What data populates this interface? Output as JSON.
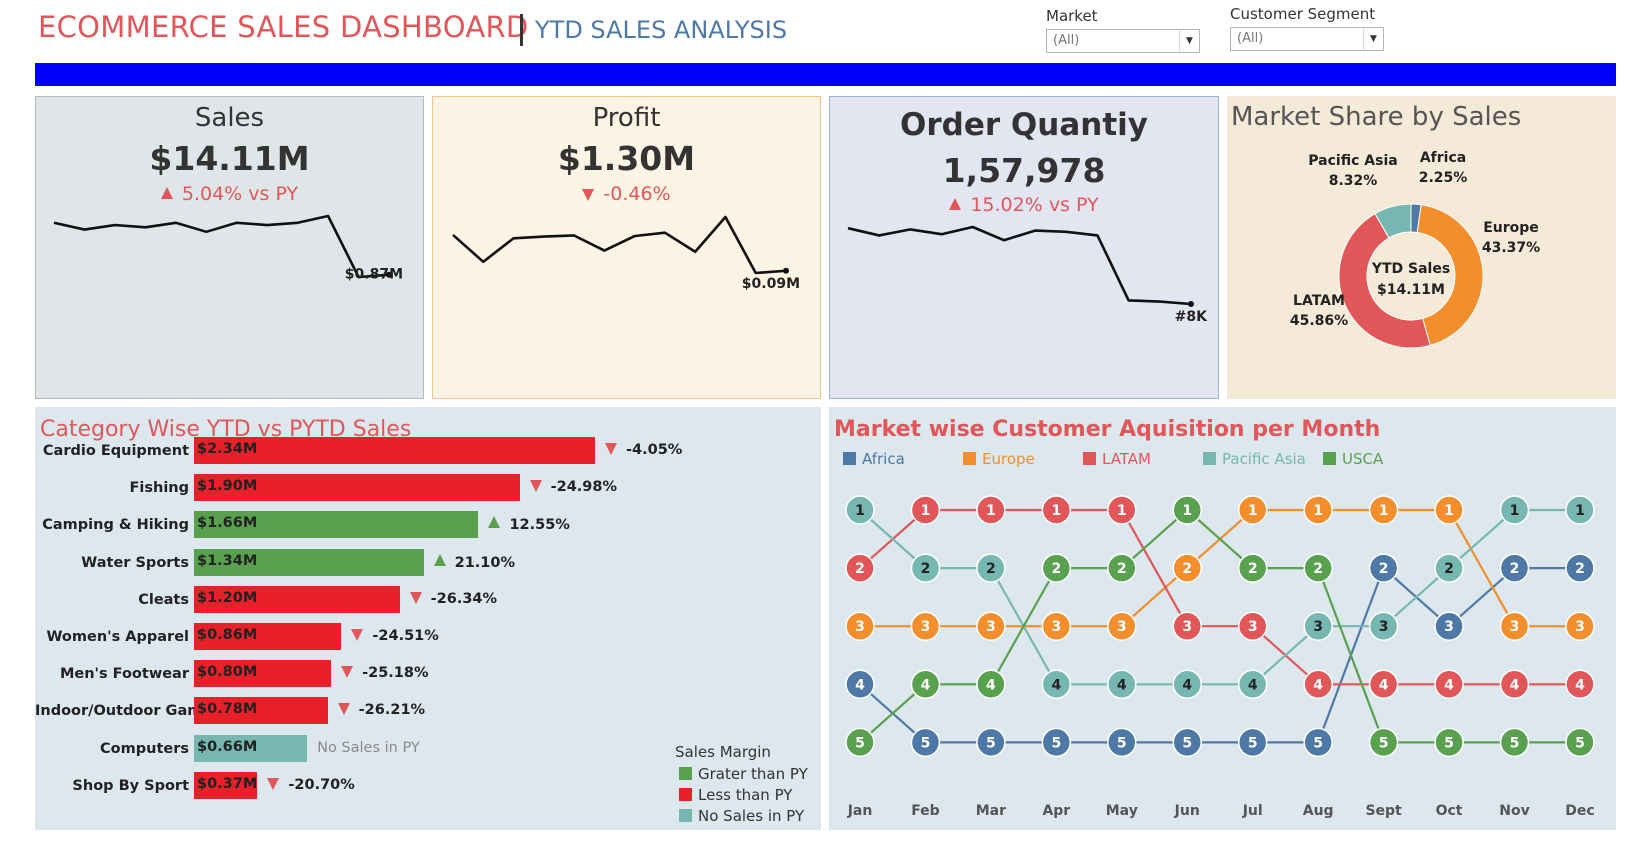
{
  "header": {
    "title": "ECOMMERCE SALES DASHBOARD",
    "subtitle": "YTD SALES ANALYSIS"
  },
  "filters": {
    "market": {
      "label": "Market",
      "value": "(All)"
    },
    "segment": {
      "label": "Customer Segment",
      "value": "(All)"
    }
  },
  "colors": {
    "accent_red": "#e15759",
    "accent_blue": "#4e79a7",
    "band_blue": "#0000ff",
    "grater": "#59a14f",
    "less": "#e8202a",
    "nosales": "#76b7b2"
  },
  "kpis": {
    "sales": {
      "title": "Sales",
      "value": "$14.11M",
      "change": "5.04% vs PY",
      "direction": "up",
      "end_label": "$0.87M",
      "trend": [
        9,
        6,
        8,
        7,
        9,
        5,
        9,
        8,
        9,
        12,
        -15,
        -14
      ]
    },
    "profit": {
      "title": "Profit",
      "value": "$1.30M",
      "change": "-0.46%",
      "direction": "down",
      "end_label": "$0.09M",
      "trend": [
        0.4,
        -2,
        0.1,
        0.25,
        0.35,
        -1,
        0.3,
        0.6,
        -1.1,
        2,
        -3,
        -2.8
      ]
    },
    "orders": {
      "title": "Order Quantiy",
      "value": "1,57,978",
      "change": "15.02% vs PY",
      "direction": "up",
      "end_label": "#8K",
      "trend": [
        14.2,
        13.6,
        14.1,
        13.7,
        14.3,
        13.2,
        14,
        13.9,
        13.6,
        8.2,
        8.1,
        7.9
      ]
    }
  },
  "market_share": {
    "title": "Market Share by Sales",
    "center_label": "YTD Sales",
    "center_value": "$14.11M",
    "slices": [
      {
        "name": "Africa",
        "pct": 2.25,
        "label": "2.25%",
        "color": "#4e79a7"
      },
      {
        "name": "Europe",
        "pct": 43.37,
        "label": "43.37%",
        "color": "#f28e2b"
      },
      {
        "name": "LATAM",
        "pct": 45.86,
        "label": "45.86%",
        "color": "#e15759"
      },
      {
        "name": "Pacific Asia",
        "pct": 8.32,
        "label": "8.32%",
        "color": "#76b7b2"
      }
    ]
  },
  "category": {
    "title": "Category Wise YTD vs PYTD Sales",
    "rows": [
      {
        "name": "Cardio Equipment",
        "value": 2.34,
        "label": "$2.34M",
        "status": "less",
        "change": "-4.05%"
      },
      {
        "name": "Fishing",
        "value": 1.9,
        "label": "$1.90M",
        "status": "less",
        "change": "-24.98%"
      },
      {
        "name": "Camping & Hiking",
        "value": 1.66,
        "label": "$1.66M",
        "status": "grater",
        "change": "12.55%"
      },
      {
        "name": "Water Sports",
        "value": 1.34,
        "label": "$1.34M",
        "status": "grater",
        "change": "21.10%"
      },
      {
        "name": "Cleats",
        "value": 1.2,
        "label": "$1.20M",
        "status": "less",
        "change": "-26.34%"
      },
      {
        "name": "Women's Apparel",
        "value": 0.86,
        "label": "$0.86M",
        "status": "less",
        "change": "-24.51%"
      },
      {
        "name": "Men's Footwear",
        "value": 0.8,
        "label": "$0.80M",
        "status": "less",
        "change": "-25.18%"
      },
      {
        "name": "Indoor/Outdoor Gam..",
        "value": 0.78,
        "label": "$0.78M",
        "status": "less",
        "change": "-26.21%"
      },
      {
        "name": "Computers",
        "value": 0.66,
        "label": "$0.66M",
        "status": "nosales",
        "change": "No Sales in PY"
      },
      {
        "name": "Shop By Sport",
        "value": 0.37,
        "label": "$0.37M",
        "status": "less",
        "change": "-20.70%"
      }
    ],
    "legend": {
      "title": "Sales Margin",
      "items": [
        {
          "label": "Grater than PY",
          "color": "#59a14f"
        },
        {
          "label": "Less than PY",
          "color": "#e8202a"
        },
        {
          "label": "No Sales in PY",
          "color": "#76b7b2"
        }
      ]
    }
  },
  "chart_data": {
    "type": "line",
    "title": "Market wise Customer Aquisition per Month",
    "x": [
      "Jan",
      "Feb",
      "Mar",
      "Apr",
      "May",
      "Jun",
      "Jul",
      "Aug",
      "Sept",
      "Oct",
      "Nov",
      "Dec"
    ],
    "y_meaning": "rank (1 = highest)",
    "series": [
      {
        "name": "Africa",
        "color": "#4e79a7",
        "values": [
          4,
          5,
          5,
          5,
          5,
          5,
          5,
          5,
          2,
          3,
          2,
          2
        ]
      },
      {
        "name": "Europe",
        "color": "#f28e2b",
        "values": [
          3,
          3,
          3,
          3,
          3,
          2,
          1,
          1,
          1,
          1,
          3,
          3
        ]
      },
      {
        "name": "LATAM",
        "color": "#e15759",
        "values": [
          2,
          1,
          1,
          1,
          1,
          3,
          3,
          4,
          4,
          4,
          4,
          4
        ]
      },
      {
        "name": "Pacific Asia",
        "color": "#76b7b2",
        "values": [
          1,
          2,
          2,
          4,
          4,
          4,
          4,
          3,
          3,
          2,
          1,
          1
        ]
      },
      {
        "name": "USCA",
        "color": "#59a14f",
        "values": [
          5,
          4,
          4,
          2,
          2,
          1,
          2,
          2,
          5,
          5,
          5,
          5
        ]
      }
    ]
  }
}
